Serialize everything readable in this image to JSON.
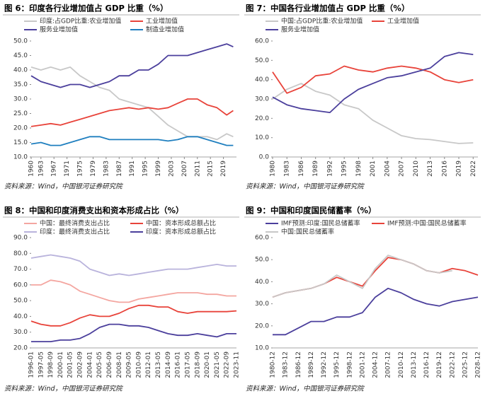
{
  "chart_data": [
    {
      "type": "line",
      "title": "图 6：印度各行业增加值占 GDP 比重（%）",
      "source": "资料来源：Wind，中国银河证券研究院",
      "x": [
        1960,
        1963,
        1966,
        1969,
        1972,
        1975,
        1978,
        1981,
        1984,
        1987,
        1990,
        1993,
        1996,
        1999,
        2002,
        2005,
        2008,
        2011,
        2014,
        2017,
        2020,
        2022
      ],
      "xlim": [
        1960,
        2023
      ],
      "xticks": [
        1960,
        1963,
        1967,
        1971,
        1975,
        1979,
        1983,
        1987,
        1991,
        1995,
        1999,
        2003,
        2007,
        2011,
        2015,
        2019
      ],
      "ylim": [
        10,
        50
      ],
      "yticks": [
        {
          "value": 10,
          "label": "10.0"
        },
        {
          "value": 15,
          "label": "15.0"
        },
        {
          "value": 20,
          "label": "20.0"
        },
        {
          "value": 25,
          "label": "25.0"
        },
        {
          "value": 30,
          "label": "30.0"
        },
        {
          "value": 35,
          "label": "35.0"
        },
        {
          "value": 40,
          "label": "40.0"
        },
        {
          "value": 45,
          "label": "45.0"
        },
        {
          "value": 50,
          "label": "50.0"
        }
      ],
      "series": [
        {
          "name": "印度:占GDP比重:农业增加值",
          "color": "#c8c8c8",
          "values": [
            41,
            40,
            41,
            40,
            41,
            38,
            36,
            34,
            33,
            30,
            29,
            28,
            27,
            24,
            21,
            19,
            17,
            17,
            17,
            16,
            18,
            17
          ]
        },
        {
          "name": "工业增加值",
          "color": "#e8433a",
          "values": [
            20.5,
            21,
            21.5,
            21,
            22,
            23,
            24,
            25,
            26,
            26.5,
            27,
            26.5,
            27,
            26.5,
            27,
            28.5,
            30,
            30,
            28,
            27,
            24.5,
            26
          ]
        },
        {
          "name": "服务业增加值",
          "color": "#4b3f9c",
          "values": [
            38,
            36,
            35,
            34,
            35,
            35,
            34,
            35,
            36,
            38,
            38,
            40,
            40,
            42,
            45,
            45,
            45,
            46,
            47,
            48,
            49,
            48
          ]
        },
        {
          "name": "制造业增加值",
          "color": "#1f7fbf",
          "values": [
            14.5,
            15,
            14,
            14,
            15,
            16,
            17,
            17,
            16,
            16,
            16,
            16,
            16,
            16,
            15.5,
            16,
            17,
            17,
            16,
            15,
            14,
            14
          ]
        }
      ]
    },
    {
      "type": "line",
      "title": "图 7：中国各行业增加值占 GDP 比重（%）",
      "source": "资料来源：Wind，中国银河证券研究院",
      "x": [
        1980,
        1983,
        1986,
        1989,
        1992,
        1995,
        1998,
        2001,
        2004,
        2007,
        2010,
        2013,
        2016,
        2019,
        2022
      ],
      "xlim": [
        1980,
        2023
      ],
      "xticks": [
        1980,
        1983,
        1986,
        1989,
        1992,
        1995,
        1998,
        2001,
        2004,
        2007,
        2010,
        2013,
        2016,
        2019,
        2022
      ],
      "ylim": [
        0,
        60
      ],
      "yticks": [
        {
          "value": 0,
          "label": "0.0"
        },
        {
          "value": 10,
          "label": "10.0"
        },
        {
          "value": 20,
          "label": "20.0"
        },
        {
          "value": 30,
          "label": "30.0"
        },
        {
          "value": 40,
          "label": "40.0"
        },
        {
          "value": 50,
          "label": "50.0"
        },
        {
          "value": 60,
          "label": "60.0"
        }
      ],
      "series": [
        {
          "name": "中国:占GDP比重:农业增加值",
          "color": "#c8c8c8",
          "values": [
            30,
            35,
            38,
            34,
            32,
            27,
            25,
            19,
            15,
            11,
            9.5,
            9,
            8,
            7,
            7.3
          ]
        },
        {
          "name": "工业增加值",
          "color": "#e8433a",
          "values": [
            44,
            33,
            36,
            42,
            43,
            47,
            45,
            44,
            46,
            47,
            46,
            44,
            40,
            38.5,
            40
          ]
        },
        {
          "name": "服务业增加值",
          "color": "#4b3f9c",
          "values": [
            31,
            27,
            25,
            24,
            23,
            30,
            35,
            38,
            41,
            42,
            44,
            46,
            52,
            54,
            53
          ]
        }
      ]
    },
    {
      "type": "line",
      "title": "图 8：中国和印度消费支出和资本形成占比（%）",
      "source": "资料来源：Wind，中国银河证券研究院",
      "categories": [
        "1996-01",
        "1997-05",
        "1998-09",
        "2000-01",
        "2001-05",
        "2002-09",
        "2004-01",
        "2005-05",
        "2006-09",
        "2008-01",
        "2009-05",
        "2010-09",
        "2012-01",
        "2013-05",
        "2014-09",
        "2016-01",
        "2017-05",
        "2018-09",
        "2020-01",
        "2021-05",
        "2022-09",
        "2023-11"
      ],
      "ylim": [
        20,
        90
      ],
      "yticks": [
        {
          "value": 20,
          "label": "20.0"
        },
        {
          "value": 30,
          "label": "30.0"
        },
        {
          "value": 40,
          "label": "40.0"
        },
        {
          "value": 50,
          "label": "50.0"
        },
        {
          "value": 60,
          "label": "60.0"
        },
        {
          "value": 70,
          "label": "70.0"
        },
        {
          "value": 80,
          "label": "80.0"
        },
        {
          "value": 90,
          "label": "90.0"
        }
      ],
      "series": [
        {
          "name": "中国：最终消费支出占比",
          "color": "#f4a6a0",
          "values": [
            60,
            60,
            63,
            62,
            60,
            56,
            54,
            52,
            50,
            49,
            49,
            51,
            52,
            53,
            54,
            55,
            55,
            55,
            54,
            54,
            53,
            53
          ]
        },
        {
          "name": "中国：资本形成总额占比",
          "color": "#e8433a",
          "values": [
            37,
            35,
            34,
            34,
            36,
            39,
            41,
            40,
            40,
            42,
            45,
            47,
            47,
            46,
            46,
            43,
            42,
            43,
            43,
            43,
            43,
            43.5
          ]
        },
        {
          "name": "印度：最终消费支出占比",
          "color": "#b9b3dc",
          "values": [
            77,
            78,
            79,
            78,
            77,
            75,
            70,
            68,
            66,
            67,
            66,
            67,
            68,
            69,
            70,
            70,
            70,
            71,
            72,
            73,
            72,
            72
          ]
        },
        {
          "name": "印度：资本形成总额占比",
          "color": "#4b3f9c",
          "values": [
            24,
            24,
            24,
            25,
            25,
            26,
            29,
            33,
            35,
            35,
            34,
            34,
            33,
            31,
            29,
            28,
            28,
            29,
            28,
            27,
            29,
            29
          ]
        }
      ]
    },
    {
      "type": "line",
      "title": "图 9：中国和印度国民储蓄率（%）",
      "source": "资料来源：Wind，中国银河证券研究院",
      "categories": [
        "1980-12",
        "1983-12",
        "1986-12",
        "1989-12",
        "1992-12",
        "1995-12",
        "1998-12",
        "2001-12",
        "2004-12",
        "2007-12",
        "2010-12",
        "2013-12",
        "2016-12",
        "2019-12",
        "2022-12",
        "2025-12",
        "2028-12"
      ],
      "ylim": [
        10,
        60
      ],
      "yticks": [
        {
          "value": 10,
          "label": "10.0"
        },
        {
          "value": 20,
          "label": "20.0"
        },
        {
          "value": 30,
          "label": "30.0"
        },
        {
          "value": 40,
          "label": "40.0"
        },
        {
          "value": 50,
          "label": "50.0"
        },
        {
          "value": 60,
          "label": "60.0"
        }
      ],
      "series": [
        {
          "name": "IMF预测:印度:国民总储蓄率",
          "color": "#4b3f9c",
          "values": [
            16,
            16,
            19,
            22,
            22,
            24,
            24,
            26,
            33,
            37,
            35,
            32,
            30,
            29,
            31,
            32,
            33
          ]
        },
        {
          "name": "IMF预测:中国:国民总储蓄率",
          "color": "#e8433a",
          "values": [
            33,
            35,
            36,
            37,
            39,
            42,
            40,
            38,
            45,
            51,
            50,
            48,
            45,
            44,
            46,
            45,
            43
          ]
        },
        {
          "name": "中国:国民总储蓄率",
          "color": "#c8c8c8",
          "values": [
            33,
            35,
            36,
            37,
            39,
            43,
            40,
            37,
            46,
            52,
            50,
            48,
            45,
            44,
            45,
            null,
            null
          ]
        }
      ]
    }
  ]
}
